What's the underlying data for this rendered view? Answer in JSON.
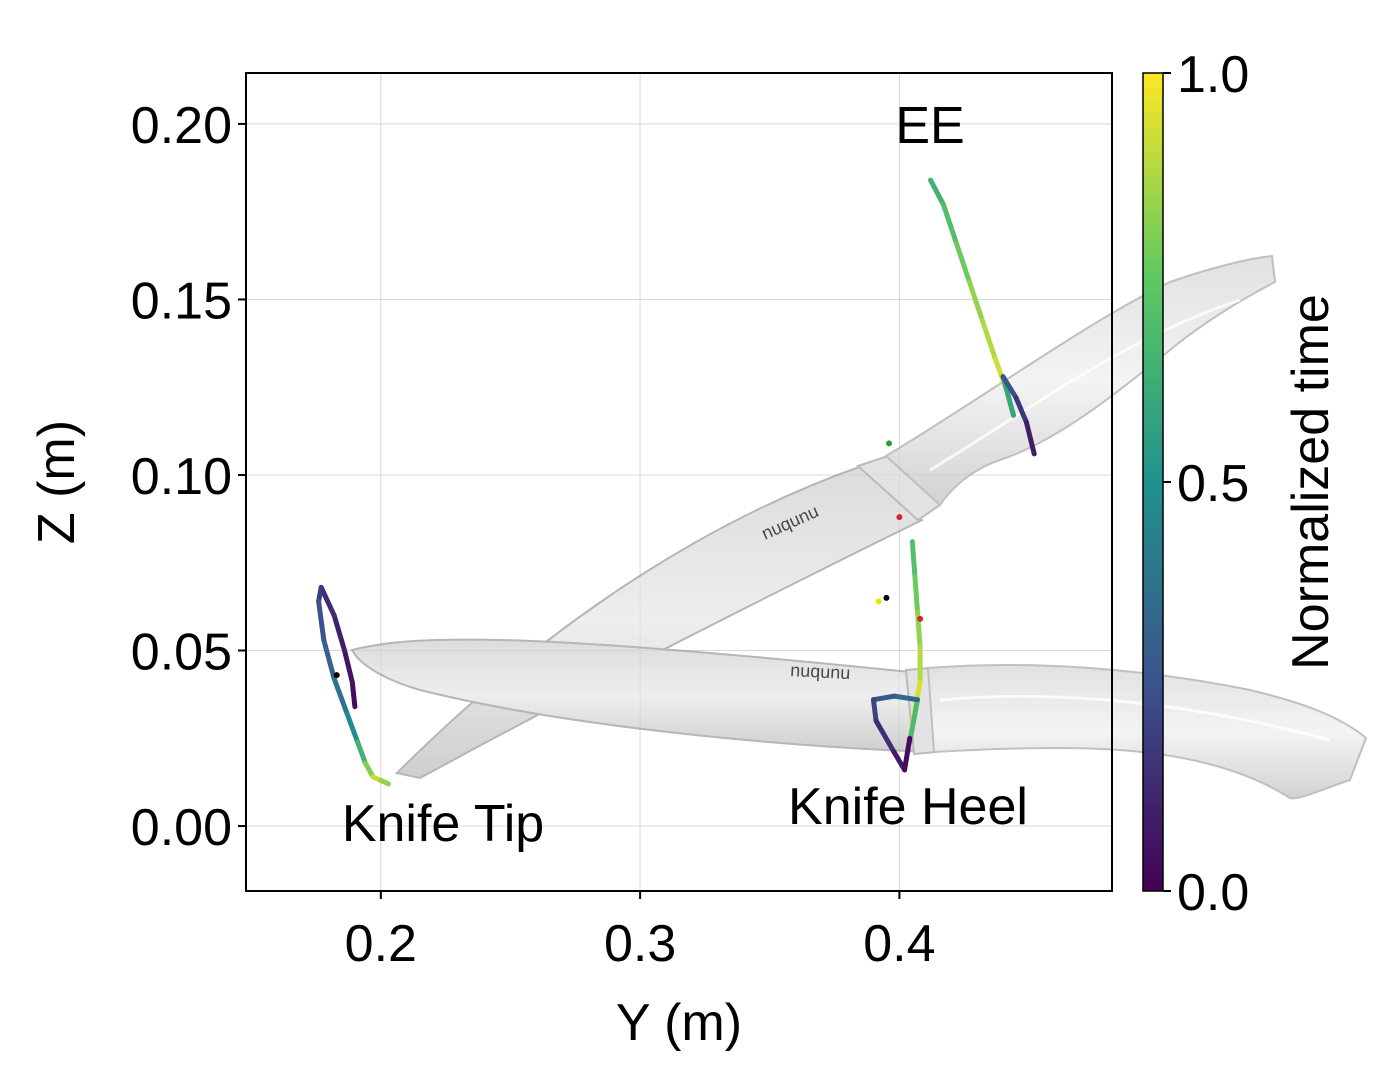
{
  "chart_data": {
    "type": "scatter",
    "xlabel": "Y (m)",
    "ylabel": "Z (m)",
    "xlim": [
      0.148,
      0.482
    ],
    "ylim": [
      -0.0185,
      0.2145
    ],
    "xticks": [
      0.2,
      0.3,
      0.4
    ],
    "xtick_labels": [
      "0.2",
      "0.3",
      "0.4"
    ],
    "yticks": [
      0.0,
      0.05,
      0.1,
      0.15,
      0.2
    ],
    "ytick_labels": [
      "0.00",
      "0.05",
      "0.10",
      "0.15",
      "0.20"
    ],
    "grid": true,
    "colorbar": {
      "label": "Normalized time",
      "range": [
        0.0,
        1.0
      ],
      "ticks": [
        0.0,
        0.5,
        1.0
      ],
      "tick_labels": [
        "0.0",
        "0.5",
        "1.0"
      ],
      "colormap": "viridis",
      "colors": [
        "#440154",
        "#3b528b",
        "#21918c",
        "#5ec962",
        "#fde725"
      ]
    },
    "annotations": [
      {
        "text": "EE",
        "x": 0.412,
        "y": 0.196
      },
      {
        "text": "Knife Tip",
        "x": 0.222,
        "y": -0.002
      },
      {
        "text": "Knife Heel",
        "x": 0.403,
        "y": 0.0
      },
      {
        "text": "nuqunu"
      }
    ],
    "background_image": "knife",
    "series": [
      {
        "points": [
          [
            0.412,
            0.184,
            0.62
          ],
          [
            0.417,
            0.177,
            0.66
          ],
          [
            0.422,
            0.166,
            0.74
          ],
          [
            0.427,
            0.155,
            0.8
          ],
          [
            0.432,
            0.144,
            0.86
          ],
          [
            0.437,
            0.133,
            0.9
          ],
          [
            0.441,
            0.125,
            0.95
          ],
          [
            0.444,
            0.117,
            0.88
          ],
          [
            0.44,
            0.128,
            0.3
          ],
          [
            0.445,
            0.122,
            0.22
          ],
          [
            0.449,
            0.115,
            0.12
          ],
          [
            0.452,
            0.106,
            0.05
          ]
        ]
      },
      {
        "points": [
          [
            0.19,
            0.034,
            0.02
          ],
          [
            0.189,
            0.041,
            0.05
          ],
          [
            0.186,
            0.05,
            0.08
          ],
          [
            0.182,
            0.06,
            0.11
          ],
          [
            0.177,
            0.068,
            0.14
          ],
          [
            0.176,
            0.064,
            0.22
          ],
          [
            0.178,
            0.053,
            0.28
          ],
          [
            0.182,
            0.042,
            0.34
          ],
          [
            0.187,
            0.032,
            0.42
          ],
          [
            0.191,
            0.024,
            0.55
          ],
          [
            0.194,
            0.018,
            0.72
          ],
          [
            0.197,
            0.014,
            0.88
          ],
          [
            0.2,
            0.013,
            0.96
          ],
          [
            0.203,
            0.012,
            0.7
          ]
        ]
      },
      {
        "points": [
          [
            0.405,
            0.081,
            0.68
          ],
          [
            0.406,
            0.071,
            0.73
          ],
          [
            0.407,
            0.061,
            0.8
          ],
          [
            0.408,
            0.051,
            0.86
          ],
          [
            0.408,
            0.041,
            0.91
          ],
          [
            0.406,
            0.033,
            0.96
          ],
          [
            0.404,
            0.024,
            0.99
          ],
          [
            0.407,
            0.036,
            0.38
          ],
          [
            0.398,
            0.037,
            0.3
          ],
          [
            0.39,
            0.036,
            0.24
          ],
          [
            0.391,
            0.03,
            0.18
          ],
          [
            0.398,
            0.021,
            0.1
          ],
          [
            0.402,
            0.016,
            0.05
          ],
          [
            0.404,
            0.025,
            0.02
          ]
        ]
      }
    ],
    "markers": [
      {
        "x": 0.396,
        "y": 0.109,
        "color": "#2ca02c"
      },
      {
        "x": 0.4,
        "y": 0.088,
        "color": "#d62728"
      },
      {
        "x": 0.395,
        "y": 0.065,
        "color": "#000000"
      },
      {
        "x": 0.392,
        "y": 0.064,
        "color": "#e5e500"
      },
      {
        "x": 0.408,
        "y": 0.059,
        "color": "#d62728"
      },
      {
        "x": 0.183,
        "y": 0.043,
        "color": "#000000"
      }
    ]
  }
}
